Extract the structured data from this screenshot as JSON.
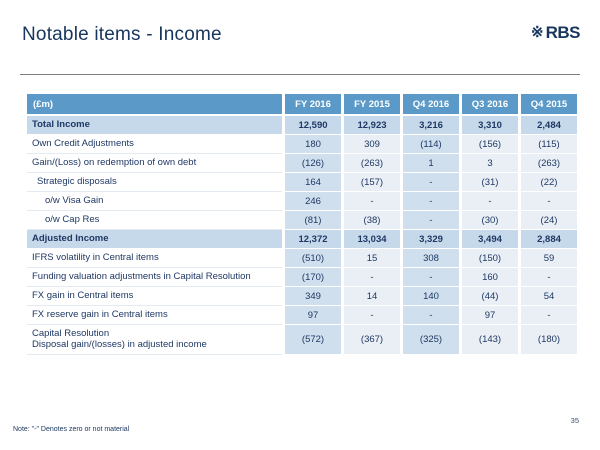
{
  "slide": {
    "title": "Notable items - Income",
    "page_number": "35",
    "footnote": "Note: \"-\" Denotes zero or not material",
    "logo": {
      "symbol": "※",
      "text": "RBS"
    }
  },
  "table": {
    "unit_header": "(£m)",
    "columns": [
      "FY 2016",
      "FY 2015",
      "Q4 2016",
      "Q3 2016",
      "Q4 2015"
    ],
    "emphasized_columns": [
      0,
      2
    ],
    "rows": [
      {
        "label": "Total Income",
        "style": "highlight",
        "indent": 0,
        "values": [
          "12,590",
          "12,923",
          "3,216",
          "3,310",
          "2,484"
        ]
      },
      {
        "label": "Own Credit Adjustments",
        "style": "normal",
        "indent": 0,
        "values": [
          "180",
          "309",
          "(114)",
          "(156)",
          "(115)"
        ]
      },
      {
        "label": "Gain/(Loss) on redemption of own debt",
        "style": "normal",
        "indent": 0,
        "values": [
          "(126)",
          "(263)",
          "1",
          "3",
          "(263)"
        ]
      },
      {
        "label": "Strategic disposals",
        "style": "normal",
        "indent": 1,
        "values": [
          "164",
          "(157)",
          "-",
          "(31)",
          "(22)"
        ]
      },
      {
        "label": "o/w Visa Gain",
        "style": "normal",
        "indent": 2,
        "values": [
          "246",
          "-",
          "-",
          "-",
          "-"
        ]
      },
      {
        "label": "o/w Cap Res",
        "style": "normal",
        "indent": 2,
        "values": [
          "(81)",
          "(38)",
          "-",
          "(30)",
          "(24)"
        ]
      },
      {
        "label": "Adjusted Income",
        "style": "highlight",
        "indent": 0,
        "values": [
          "12,372",
          "13,034",
          "3,329",
          "3,494",
          "2,884"
        ]
      },
      {
        "label": "IFRS volatility in Central items",
        "style": "normal",
        "indent": 0,
        "values": [
          "(510)",
          "15",
          "308",
          "(150)",
          "59"
        ]
      },
      {
        "label": "Funding valuation adjustments in Capital Resolution",
        "style": "normal",
        "indent": 0,
        "values": [
          "(170)",
          "-",
          "-",
          "160",
          "-"
        ]
      },
      {
        "label": "FX gain in Central items",
        "style": "normal",
        "indent": 0,
        "values": [
          "349",
          "14",
          "140",
          "(44)",
          "54"
        ]
      },
      {
        "label": "FX reserve gain in Central items",
        "style": "normal",
        "indent": 0,
        "values": [
          "97",
          "-",
          "-",
          "97",
          "-"
        ]
      },
      {
        "label": "Capital Resolution\nDisposal gain/(losses) in adjusted income",
        "style": "normal",
        "indent": 0,
        "values": [
          "(572)",
          "(367)",
          "(325)",
          "(143)",
          "(180)"
        ]
      }
    ]
  },
  "colors": {
    "header_bg": "#5b9ac8",
    "row_highlight_bg": "#c5d9ea",
    "col_emphasis_bg": "#cfdfee",
    "col_light_bg": "#e9eff5",
    "text_navy": "#1f3864",
    "title_color": "#17365d",
    "rule_color": "#7f7f7f",
    "footnote_color": "#17365d"
  }
}
